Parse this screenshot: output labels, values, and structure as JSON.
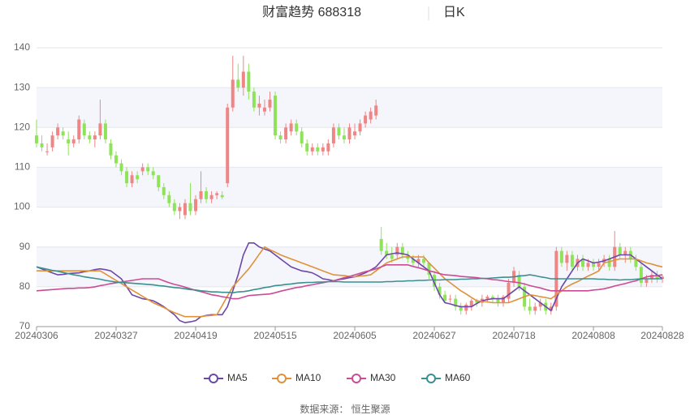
{
  "chart_data": {
    "type": "candlestick",
    "title": "财富趋势 688318",
    "period": "日K",
    "source": "数据来源： 恒生聚源",
    "categories": [
      "20240306",
      null,
      null,
      null,
      null,
      null,
      null,
      null,
      null,
      null,
      null,
      null,
      null,
      null,
      null,
      "20240327",
      null,
      null,
      null,
      null,
      null,
      null,
      null,
      null,
      null,
      null,
      null,
      null,
      null,
      null,
      "20240419",
      null,
      null,
      null,
      null,
      null,
      null,
      null,
      null,
      null,
      null,
      null,
      null,
      null,
      null,
      "20240515",
      null,
      null,
      null,
      null,
      null,
      null,
      null,
      null,
      null,
      null,
      null,
      null,
      null,
      null,
      "20240605",
      null,
      null,
      null,
      null,
      null,
      null,
      null,
      null,
      null,
      null,
      null,
      null,
      null,
      null,
      "20240627",
      null,
      null,
      null,
      null,
      null,
      null,
      null,
      null,
      null,
      null,
      null,
      null,
      null,
      null,
      "20240718",
      null,
      null,
      null,
      null,
      null,
      null,
      null,
      null,
      null,
      null,
      null,
      null,
      null,
      null,
      "20240808",
      null,
      null,
      null,
      null,
      null,
      null,
      null,
      null,
      null,
      null,
      null,
      null,
      "20240828"
    ],
    "candles": [
      [
        118,
        122,
        115,
        116
      ],
      [
        116,
        118,
        114,
        115
      ],
      [
        114,
        116,
        113,
        114
      ],
      [
        115,
        119,
        114,
        118
      ],
      [
        118,
        121,
        117,
        120
      ],
      [
        119,
        120,
        117,
        118
      ],
      [
        117,
        119,
        113,
        116
      ],
      [
        116,
        118,
        115,
        117
      ],
      [
        117,
        123,
        116,
        122
      ],
      [
        121,
        122,
        117,
        118
      ],
      [
        118,
        119,
        116,
        117
      ],
      [
        117,
        119,
        115,
        118
      ],
      [
        118,
        127,
        117,
        121
      ],
      [
        121,
        122,
        116,
        117
      ],
      [
        116,
        117,
        112,
        113
      ],
      [
        113,
        114,
        110,
        111
      ],
      [
        111,
        112,
        108,
        109
      ],
      [
        109,
        110,
        105,
        106
      ],
      [
        106,
        109,
        105,
        108
      ],
      [
        108,
        109,
        106,
        107
      ],
      [
        109,
        111,
        108,
        110
      ],
      [
        110,
        111,
        108,
        109
      ],
      [
        109,
        110,
        107,
        108
      ],
      [
        108,
        108,
        104,
        105
      ],
      [
        105,
        106,
        102,
        103
      ],
      [
        103,
        104,
        100,
        101
      ],
      [
        101,
        102,
        98,
        99
      ],
      [
        99,
        101,
        97,
        100
      ],
      [
        98,
        102,
        97,
        101
      ],
      [
        101,
        106,
        98,
        99
      ],
      [
        99,
        103,
        98,
        102
      ],
      [
        102,
        109,
        101,
        104
      ],
      [
        104,
        105,
        101,
        102
      ],
      [
        102,
        104,
        101,
        103
      ],
      [
        103,
        104,
        102,
        103.5
      ],
      [
        103,
        104,
        102,
        102.5
      ],
      [
        106,
        126,
        105,
        125
      ],
      [
        125,
        138,
        124,
        132
      ],
      [
        132,
        136,
        129,
        130
      ],
      [
        130,
        138,
        128,
        134
      ],
      [
        134,
        136,
        127,
        129
      ],
      [
        129,
        130,
        124,
        125
      ],
      [
        125,
        128,
        123,
        126
      ],
      [
        124,
        127,
        123,
        125
      ],
      [
        125,
        129,
        124,
        127
      ],
      [
        128,
        129,
        117,
        118
      ],
      [
        118,
        119,
        116,
        117
      ],
      [
        117,
        121,
        116,
        120
      ],
      [
        119,
        122,
        118,
        121
      ],
      [
        121,
        122,
        118,
        119
      ],
      [
        119,
        120,
        115,
        116
      ],
      [
        116,
        117,
        113,
        114
      ],
      [
        114,
        116,
        113,
        115
      ],
      [
        115,
        116,
        113,
        114
      ],
      [
        114,
        116,
        113,
        115
      ],
      [
        114,
        117,
        113,
        116
      ],
      [
        116,
        121,
        115,
        120
      ],
      [
        120,
        121,
        117,
        118
      ],
      [
        118,
        120,
        116,
        117
      ],
      [
        117,
        121,
        116,
        120
      ],
      [
        118,
        121,
        117,
        119
      ],
      [
        119,
        122,
        118,
        121
      ],
      [
        121,
        124,
        120,
        123
      ],
      [
        122,
        125,
        121,
        124
      ],
      [
        123,
        127,
        122,
        125.5
      ],
      [
        92,
        95,
        88,
        89
      ],
      [
        89,
        91,
        87,
        88
      ],
      [
        88,
        90,
        86,
        87
      ],
      [
        88,
        91,
        87,
        90
      ],
      [
        90,
        91,
        87,
        88
      ],
      [
        88,
        89,
        86,
        87
      ],
      [
        87,
        88,
        85,
        86
      ],
      [
        86,
        88,
        85,
        87
      ],
      [
        87,
        88,
        85,
        86
      ],
      [
        86,
        86,
        82,
        83
      ],
      [
        83,
        84,
        79,
        80
      ],
      [
        80,
        81,
        77,
        78
      ],
      [
        78,
        79,
        76,
        76.5
      ],
      [
        77,
        78,
        76,
        77
      ],
      [
        77,
        78,
        74,
        75
      ],
      [
        75,
        76,
        73,
        74
      ],
      [
        74,
        76,
        73,
        75.5
      ],
      [
        75,
        77,
        74,
        76.5
      ],
      [
        76.5,
        77,
        75,
        76
      ],
      [
        76,
        78,
        75,
        77
      ],
      [
        77,
        78,
        76,
        77.5
      ],
      [
        77.5,
        78,
        76,
        77
      ],
      [
        77,
        78,
        75,
        76
      ],
      [
        76,
        78,
        75,
        77.5
      ],
      [
        77,
        82,
        76,
        81
      ],
      [
        81,
        85,
        80,
        84
      ],
      [
        83,
        84,
        79,
        80
      ],
      [
        80,
        81,
        74,
        75
      ],
      [
        75,
        77,
        73,
        74
      ],
      [
        74,
        76,
        73,
        75
      ],
      [
        75,
        77,
        74,
        76
      ],
      [
        76,
        77,
        73,
        74
      ],
      [
        74,
        76,
        73,
        75
      ],
      [
        75,
        90,
        74,
        89
      ],
      [
        89,
        90,
        85,
        86
      ],
      [
        86,
        89,
        84,
        88
      ],
      [
        88,
        89,
        84,
        85
      ],
      [
        85,
        88,
        84,
        87
      ],
      [
        87,
        88,
        84,
        85
      ],
      [
        85,
        87,
        84,
        86
      ],
      [
        86,
        87,
        84,
        85
      ],
      [
        85,
        87,
        84,
        86
      ],
      [
        86,
        88,
        85,
        87
      ],
      [
        87,
        88,
        84,
        85
      ],
      [
        85,
        94,
        84,
        90
      ],
      [
        90,
        91,
        87,
        88
      ],
      [
        88,
        90,
        86,
        89
      ],
      [
        89,
        90,
        86,
        87
      ],
      [
        87,
        88,
        84,
        85
      ],
      [
        85,
        86,
        80,
        81
      ],
      [
        81,
        83,
        80,
        82
      ],
      [
        82,
        84,
        81,
        83
      ],
      [
        83,
        84,
        81,
        82
      ],
      [
        82,
        83,
        81,
        82.5
      ]
    ],
    "up_color": "#f08585",
    "down_color": "#8fe35a",
    "series": [
      {
        "name": "MA5",
        "color": "#6b48a8",
        "values": [
          85,
          84.5,
          84,
          83.5,
          83,
          83.1,
          83.3,
          83.4,
          83.5,
          83.8,
          84,
          84.3,
          84.5,
          84.3,
          84,
          83,
          82,
          80,
          78,
          77.5,
          77,
          76.8,
          76.5,
          75.8,
          75,
          74,
          73,
          71.5,
          71,
          71.2,
          71.5,
          72.5,
          72.8,
          73,
          73,
          73,
          75,
          79,
          83,
          88,
          91,
          91,
          90,
          89.5,
          89,
          88,
          87,
          86,
          85,
          84.5,
          84,
          83.8,
          83.5,
          82.8,
          82,
          81.8,
          81.5,
          81.8,
          82,
          82.3,
          82.5,
          83,
          83.5,
          84.2,
          85,
          86.5,
          88,
          88.3,
          88.5,
          88.3,
          88,
          87,
          86,
          85,
          84,
          81,
          78,
          76,
          75.7,
          75.3,
          75,
          75,
          75,
          75.8,
          76.5,
          76.8,
          77,
          77,
          77,
          78,
          79,
          80,
          79,
          78,
          77,
          76,
          75,
          74,
          77,
          80,
          82,
          84,
          86,
          87,
          86.5,
          86,
          86.2,
          86.5,
          87,
          87.5,
          88,
          88,
          88,
          87,
          86,
          85,
          84,
          83,
          82
        ]
      },
      {
        "name": "MA10",
        "color": "#e0913a",
        "values": [
          84,
          84,
          84,
          84,
          84,
          84,
          84,
          84,
          84,
          84,
          84,
          84,
          84,
          83.2,
          82.4,
          81.6,
          80.8,
          80,
          79.2,
          78.4,
          77.6,
          76.8,
          76,
          75.4,
          74.8,
          74.1,
          73.5,
          73,
          72.5,
          72.5,
          72.5,
          72.5,
          72.7,
          72.8,
          73,
          75.3,
          77.7,
          80,
          81.5,
          83,
          84.5,
          86.3,
          88.2,
          90,
          89.3,
          88.7,
          88,
          87.5,
          87,
          86.5,
          86,
          85.5,
          85,
          84.5,
          84,
          83.5,
          83,
          82.9,
          82.8,
          82.6,
          82.5,
          82.7,
          82.8,
          83,
          84,
          85,
          86,
          86.5,
          87,
          87.5,
          87.5,
          87.5,
          87.5,
          87.5,
          86,
          84.7,
          83.3,
          82,
          81,
          80,
          79,
          78.2,
          77.3,
          76.5,
          76.3,
          76.2,
          76,
          76,
          76,
          76,
          76.5,
          77,
          77.5,
          78,
          77.8,
          77.5,
          77.3,
          77,
          78,
          79,
          80,
          80.7,
          81.3,
          82,
          82.7,
          83.3,
          84,
          86,
          86.3,
          86.7,
          87,
          87,
          87,
          87,
          86.5,
          86,
          85.7,
          85.3,
          85
        ]
      },
      {
        "name": "MA30",
        "color": "#cc4b95",
        "values": [
          79,
          79.1,
          79.2,
          79.3,
          79.4,
          79.5,
          79.6,
          79.6,
          79.7,
          79.7,
          79.8,
          80,
          80.3,
          80.5,
          80.8,
          81,
          81.2,
          81.4,
          81.6,
          81.8,
          82,
          82,
          82,
          82,
          81.5,
          81,
          80.6,
          80.3,
          79.9,
          79.5,
          79.1,
          78.8,
          78.4,
          78,
          77.8,
          77.5,
          77.3,
          77,
          77,
          77.4,
          77.8,
          77.9,
          78,
          78.1,
          78.2,
          78.5,
          78.9,
          79.2,
          79.5,
          79.8,
          80,
          80.3,
          80.5,
          80.8,
          81,
          81.3,
          81.5,
          81.9,
          82.3,
          82.6,
          83,
          83.4,
          83.8,
          84.1,
          84.5,
          85,
          85.5,
          85.5,
          85.5,
          85.5,
          85.5,
          85.1,
          84.8,
          84.4,
          84,
          83.7,
          83.3,
          83,
          82.9,
          82.8,
          82.6,
          82.5,
          82.4,
          82.3,
          82.1,
          82,
          81.8,
          81.7,
          81.5,
          81.3,
          81.2,
          81,
          80.7,
          80.3,
          80,
          79.7,
          79.3,
          79,
          79,
          79,
          79,
          79,
          79,
          79,
          79,
          79.2,
          79.3,
          79.5,
          79.8,
          80.2,
          80.5,
          80.8,
          81.2,
          81.5,
          82,
          82.5,
          82.7,
          82.8,
          83
        ]
      },
      {
        "name": "MA60",
        "color": "#3a8f8f",
        "values": [
          85,
          84.7,
          84.4,
          84.1,
          83.9,
          83.6,
          83.3,
          83,
          82.8,
          82.5,
          82.3,
          82.1,
          81.9,
          81.6,
          81.4,
          81.2,
          81.1,
          81,
          80.9,
          80.8,
          80.7,
          80.6,
          80.5,
          80.3,
          80.2,
          80,
          79.8,
          79.7,
          79.5,
          79.3,
          79.2,
          79,
          78.9,
          78.7,
          78.7,
          78.6,
          78.6,
          78.5,
          78.7,
          78.8,
          79,
          79.3,
          79.5,
          79.8,
          80,
          80.3,
          80.4,
          80.6,
          80.7,
          80.9,
          81,
          81.1,
          81.1,
          81.2,
          81.2,
          81.3,
          81.3,
          81.3,
          81.2,
          81.2,
          81.2,
          81.2,
          81.2,
          81.2,
          81.2,
          81.2,
          81.3,
          81.3,
          81.4,
          81.4,
          81.5,
          81.5,
          81.6,
          81.6,
          81.7,
          81.7,
          81.7,
          81.8,
          81.8,
          81.8,
          81.9,
          81.9,
          82,
          82,
          82.1,
          82.1,
          82.2,
          82.3,
          82.4,
          82.4,
          82.5,
          82.7,
          82.8,
          83,
          82.8,
          82.5,
          82.3,
          82,
          82,
          82,
          82,
          82,
          82,
          82,
          82,
          82,
          81.9,
          81.9,
          81.8,
          81.8,
          81.7,
          81.8,
          81.8,
          81.9,
          82,
          82,
          82,
          82,
          82
        ]
      }
    ],
    "ylim": [
      70,
      140
    ],
    "yticks": [
      70,
      80,
      90,
      100,
      110,
      120,
      130,
      140
    ],
    "grid": true
  }
}
